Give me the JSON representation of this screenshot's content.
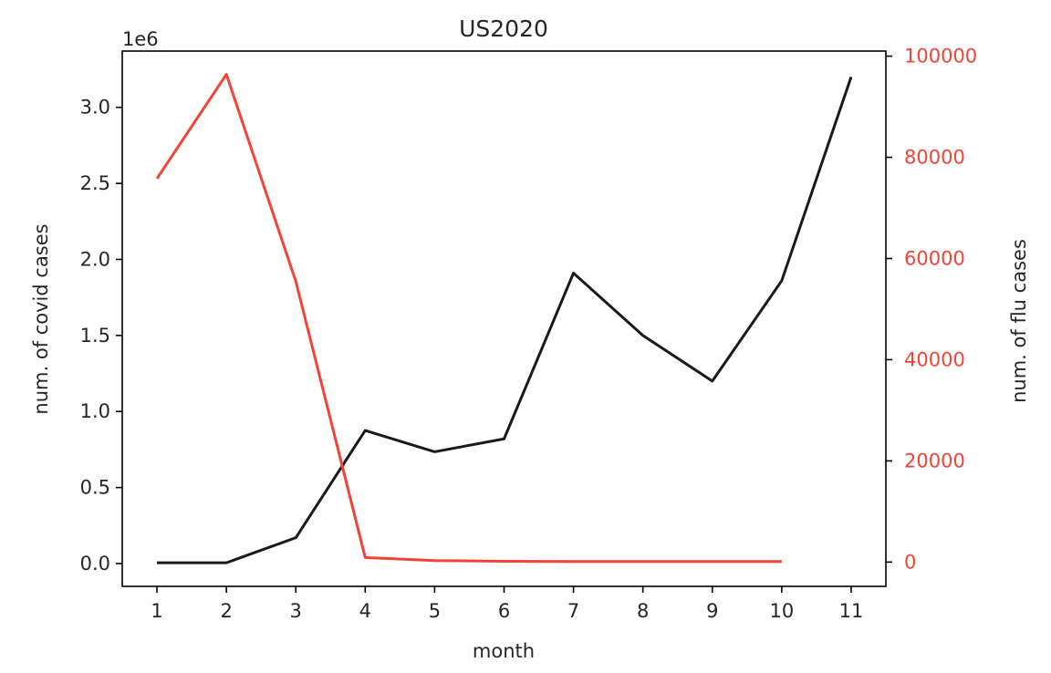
{
  "chart_data": {
    "type": "line",
    "title": "US2020",
    "xlabel": "month",
    "ylabel_left": "num. of covid cases",
    "ylabel_right": "num. of flu cases",
    "left_axis_offset_label": "1e6",
    "x_ticks": [
      1,
      2,
      3,
      4,
      5,
      6,
      7,
      8,
      9,
      10,
      11
    ],
    "xlim": [
      0.5,
      11.5
    ],
    "left_axis": {
      "ylim": [
        -0.15,
        3.37
      ],
      "ticks": [
        0.0,
        0.5,
        1.0,
        1.5,
        2.0,
        2.5,
        3.0
      ],
      "tick_labels": [
        "0.0",
        "0.5",
        "1.0",
        "1.5",
        "2.0",
        "2.5",
        "3.0"
      ],
      "color": "#262626"
    },
    "right_axis": {
      "ylim": [
        -4800,
        101000
      ],
      "ticks": [
        0,
        20000,
        40000,
        60000,
        80000,
        100000
      ],
      "tick_labels": [
        "0",
        "20000",
        "40000",
        "60000",
        "80000",
        "100000"
      ],
      "color": "#f44336"
    },
    "grid": false,
    "series": [
      {
        "axis": "left",
        "color": "#1a1a1a",
        "x": [
          1,
          2,
          3,
          4,
          5,
          6,
          7,
          8,
          9,
          10,
          11
        ],
        "values": [
          0.005,
          0.005,
          0.17,
          0.875,
          0.735,
          0.82,
          1.91,
          1.5,
          1.2,
          1.86,
          3.2
        ]
      },
      {
        "axis": "right",
        "color": "#f44336",
        "x": [
          1,
          2,
          3,
          4,
          5,
          6,
          7,
          8,
          9,
          10
        ],
        "values": [
          75800,
          96400,
          55500,
          900,
          300,
          150,
          100,
          100,
          100,
          100
        ]
      }
    ]
  }
}
